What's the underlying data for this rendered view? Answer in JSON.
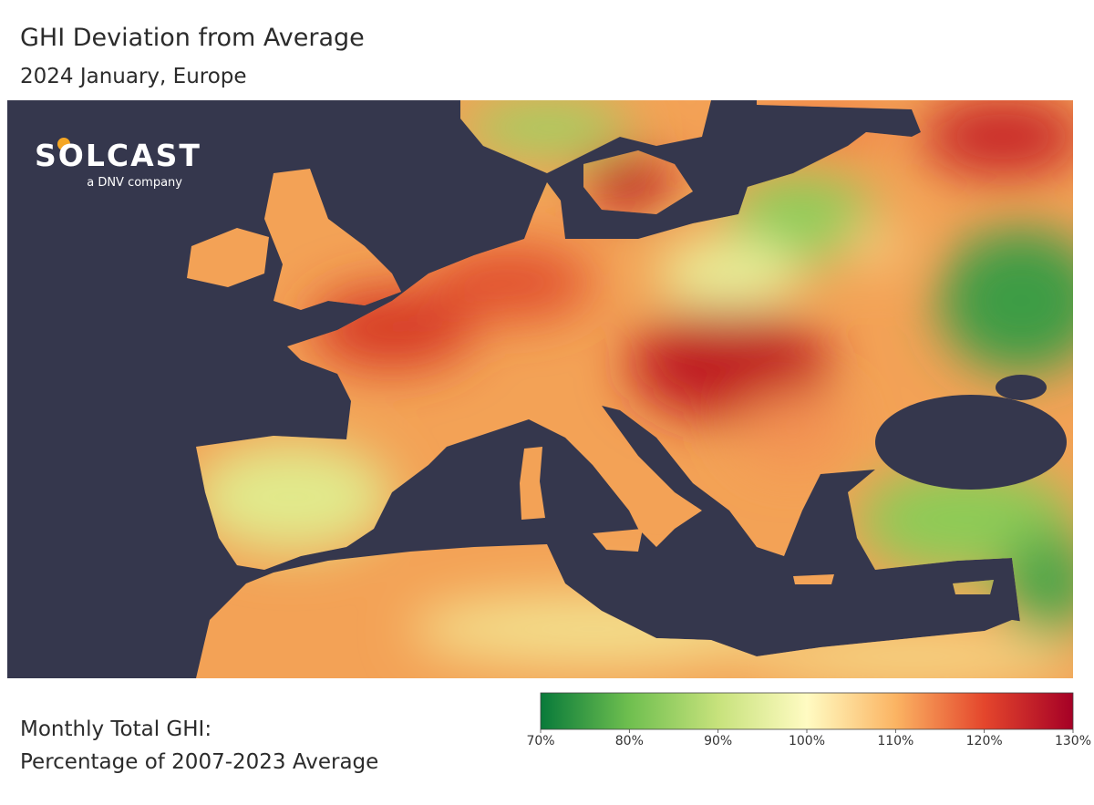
{
  "header": {
    "title": "GHI Deviation from Average",
    "subtitle": "2024 January, Europe"
  },
  "logo": {
    "name": "SOLCAST",
    "tagline": "a DNV company"
  },
  "legend": {
    "title_lines": [
      "Monthly Total GHI:",
      "Percentage of 2007-2023 Average"
    ],
    "range": [
      70,
      130
    ],
    "ticks": [
      {
        "value": 70,
        "label": "70%"
      },
      {
        "value": 80,
        "label": "80%"
      },
      {
        "value": 90,
        "label": "90%"
      },
      {
        "value": 100,
        "label": "100%"
      },
      {
        "value": 110,
        "label": "110%"
      },
      {
        "value": 120,
        "label": "120%"
      },
      {
        "value": 130,
        "label": "130%"
      }
    ],
    "colors": [
      "#087a3a",
      "#6fbf4f",
      "#c7e27c",
      "#fffbc2",
      "#fbb463",
      "#e4462c",
      "#a50026"
    ]
  }
}
